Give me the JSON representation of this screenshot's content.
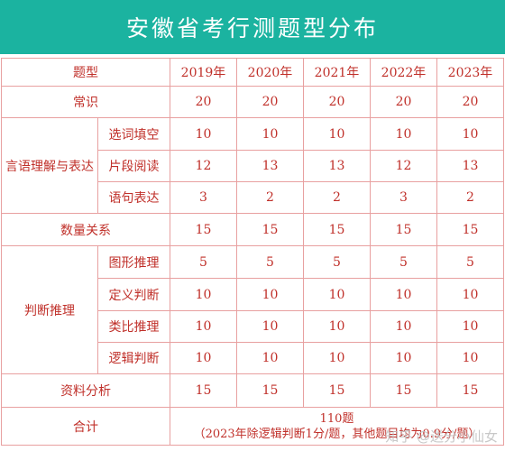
{
  "title": "安徽省考行测题型分布",
  "header": {
    "type_label": "题型",
    "years": [
      "2019年",
      "2020年",
      "2021年",
      "2022年",
      "2023年"
    ]
  },
  "rows": {
    "changshi": {
      "label": "常识",
      "values": [
        "20",
        "20",
        "20",
        "20",
        "20"
      ]
    },
    "yanyu": {
      "label": "言语理解与表达",
      "subs": [
        {
          "label": "选词填空",
          "values": [
            "10",
            "10",
            "10",
            "10",
            "10"
          ]
        },
        {
          "label": "片段阅读",
          "values": [
            "12",
            "13",
            "13",
            "12",
            "13"
          ]
        },
        {
          "label": "语句表达",
          "values": [
            "3",
            "2",
            "2",
            "3",
            "2"
          ]
        }
      ]
    },
    "shuliang": {
      "label": "数量关系",
      "values": [
        "15",
        "15",
        "15",
        "15",
        "15"
      ]
    },
    "panduan": {
      "label": "判断推理",
      "subs": [
        {
          "label": "图形推理",
          "values": [
            "5",
            "5",
            "5",
            "5",
            "5"
          ]
        },
        {
          "label": "定义判断",
          "values": [
            "10",
            "10",
            "10",
            "10",
            "10"
          ]
        },
        {
          "label": "类比推理",
          "values": [
            "10",
            "10",
            "10",
            "10",
            "10"
          ]
        },
        {
          "label": "逻辑判断",
          "values": [
            "10",
            "10",
            "10",
            "10",
            "10"
          ]
        }
      ]
    },
    "ziliao": {
      "label": "资料分析",
      "values": [
        "15",
        "15",
        "15",
        "15",
        "15"
      ]
    },
    "total": {
      "label": "合计",
      "count": "110题",
      "note": "（2023年除逻辑判断1分/题，其他题目均为0.9分/题）"
    }
  },
  "watermark": "知乎 @送分小仙女",
  "colors": {
    "accent": "#1bb3a0",
    "text": "#c0302a",
    "border": "#e8a0a0"
  }
}
